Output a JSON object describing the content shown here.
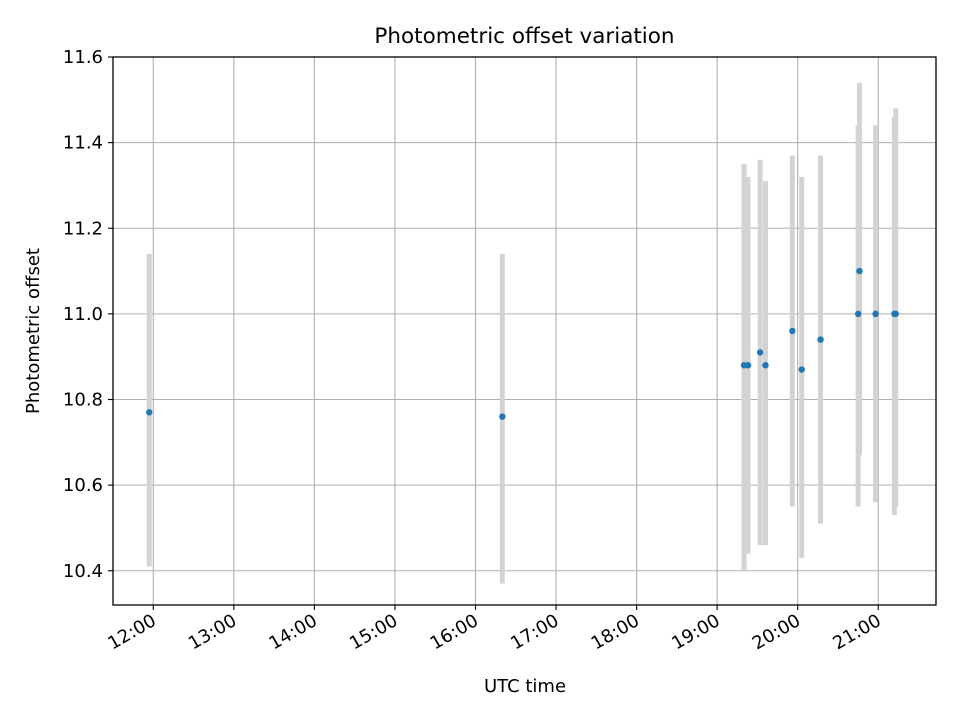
{
  "chart_data": {
    "type": "scatter",
    "title": "Photometric offset variation",
    "xlabel": "UTC time",
    "ylabel": "Photometric offset",
    "x_ticks": [
      "12:00",
      "13:00",
      "14:00",
      "15:00",
      "16:00",
      "17:00",
      "18:00",
      "19:00",
      "20:00",
      "21:00"
    ],
    "y_ticks": [
      "10.4",
      "10.6",
      "10.8",
      "11.0",
      "11.2",
      "11.4",
      "11.6"
    ],
    "xlim": [
      "11:30",
      "21:43"
    ],
    "ylim": [
      10.32,
      11.6
    ],
    "grid": true,
    "error_bar_color": "#d3d3d3",
    "point_color": "#1f77b4",
    "series": [
      {
        "points": [
          {
            "x": "11:57",
            "y": 10.77,
            "ymin": 10.41,
            "ymax": 11.14
          },
          {
            "x": "16:20",
            "y": 10.76,
            "ymin": 10.37,
            "ymax": 11.14
          },
          {
            "x": "19:20",
            "y": 10.88,
            "ymin": 10.4,
            "ymax": 11.35
          },
          {
            "x": "19:23",
            "y": 10.88,
            "ymin": 10.44,
            "ymax": 11.32
          },
          {
            "x": "19:32",
            "y": 10.91,
            "ymin": 10.46,
            "ymax": 11.36
          },
          {
            "x": "19:36",
            "y": 10.88,
            "ymin": 10.46,
            "ymax": 11.31
          },
          {
            "x": "19:56",
            "y": 10.96,
            "ymin": 10.55,
            "ymax": 11.37
          },
          {
            "x": "20:03",
            "y": 10.87,
            "ymin": 10.43,
            "ymax": 11.32
          },
          {
            "x": "20:17",
            "y": 10.94,
            "ymin": 10.51,
            "ymax": 11.37
          },
          {
            "x": "20:45",
            "y": 11.0,
            "ymin": 10.55,
            "ymax": 11.44
          },
          {
            "x": "20:46",
            "y": 11.1,
            "ymin": 10.67,
            "ymax": 11.54
          },
          {
            "x": "20:58",
            "y": 11.0,
            "ymin": 10.56,
            "ymax": 11.44
          },
          {
            "x": "21:12",
            "y": 11.0,
            "ymin": 10.53,
            "ymax": 11.46
          },
          {
            "x": "21:13",
            "y": 11.0,
            "ymin": 10.55,
            "ymax": 11.48
          }
        ]
      }
    ]
  }
}
